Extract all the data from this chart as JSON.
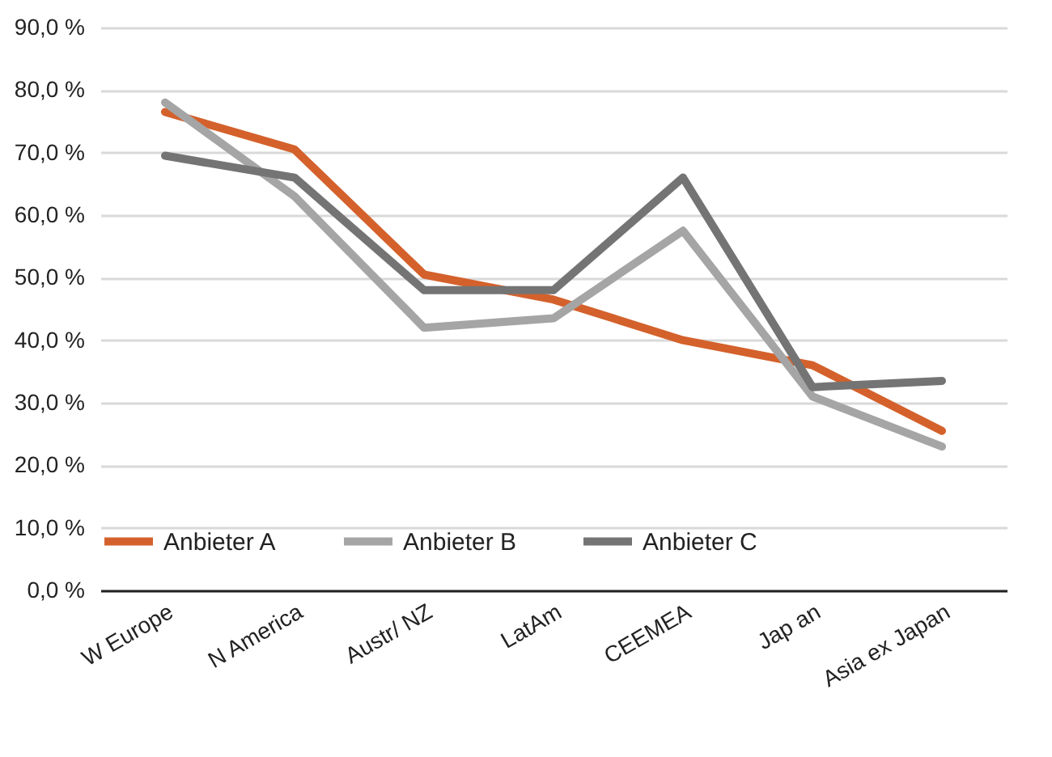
{
  "chart_data": {
    "type": "line",
    "categories": [
      "W Europe",
      "N America",
      "Austr/ NZ",
      "LatAm",
      "CEEMEA",
      "Jap an",
      "Asia ex Japan"
    ],
    "series": [
      {
        "name": "Anbieter A",
        "color": "#d4612c",
        "values": [
          76.5,
          70.5,
          50.5,
          46.5,
          40,
          36,
          25.5
        ]
      },
      {
        "name": "Anbieter B",
        "color": "#a5a5a5",
        "values": [
          78,
          63,
          42,
          43.5,
          57.5,
          31,
          23
        ]
      },
      {
        "name": "Anbieter C",
        "color": "#747474",
        "values": [
          69.5,
          66,
          48,
          48,
          66,
          32.5,
          33.5
        ]
      }
    ],
    "ylim": [
      0,
      90
    ],
    "yticks": [
      {
        "value": 0,
        "label": "0,0 %"
      },
      {
        "value": 10,
        "label": "10,0 %"
      },
      {
        "value": 20,
        "label": "20,0 %"
      },
      {
        "value": 30,
        "label": "30,0 %"
      },
      {
        "value": 40,
        "label": "40,0 %"
      },
      {
        "value": 50,
        "label": "50,0 %"
      },
      {
        "value": 60,
        "label": "60,0 %"
      },
      {
        "value": 70,
        "label": "70,0 %"
      },
      {
        "value": 80,
        "label": "80,0 %"
      },
      {
        "value": 90,
        "label": "90,0 %"
      }
    ],
    "grid": "y",
    "legend": "bottom",
    "line_style": "solid",
    "marker": "none"
  }
}
